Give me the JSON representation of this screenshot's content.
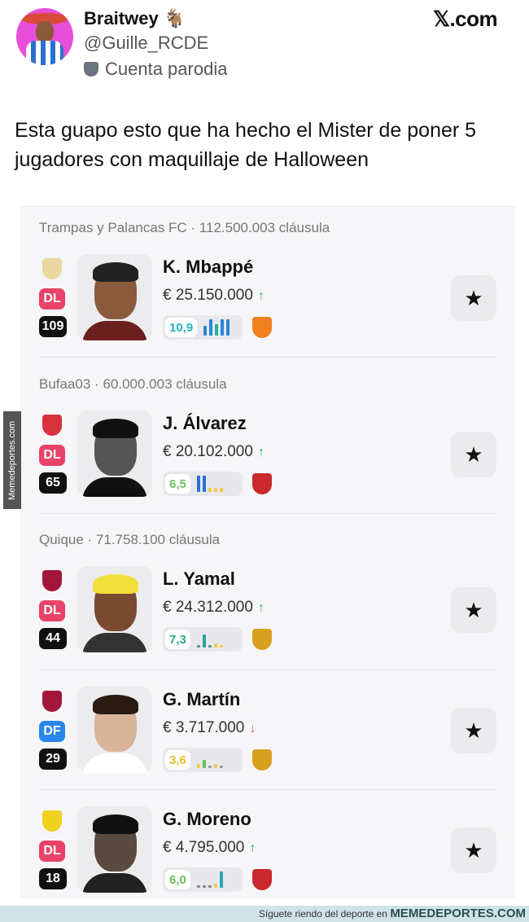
{
  "post": {
    "display_name": "Braitwey 🐐",
    "handle": "@Guille_RCDE",
    "parody_label": "Cuenta parodia",
    "source": "𝕏.com",
    "text": "Esta guapo esto que ha hecho el Mister de poner 5 jugadores con maquillaje de Halloween"
  },
  "players": [
    {
      "section": "Trampas y Palancas FC · 112.500.003 cláusula",
      "club_color": "#e9d9a0",
      "position": "DL",
      "position_color": "#e8436a",
      "points": "109",
      "name": "K. Mbappé",
      "price": "€ 25.150.000",
      "trend": "↑",
      "trend_color": "#2aa87a",
      "rating": "10,9",
      "rating_color": "#2bb3c0",
      "bars": [
        {
          "level": 0.6,
          "color": "#2a86d8"
        },
        {
          "level": 1,
          "color": "#2a86d8"
        },
        {
          "level": 0.7,
          "color": "#2ab0a0"
        },
        {
          "level": 1,
          "color": "#2a86d8"
        },
        {
          "level": 1,
          "color": "#2a86d8"
        }
      ],
      "opponent_color": "#f08020",
      "face": "#8b5a3c",
      "hair": "#222",
      "shirt": "#6b1f1f"
    },
    {
      "section": "Bufaa03 · 60.000.003 cláusula",
      "club_color": "#d8323c",
      "position": "DL",
      "position_color": "#e8436a",
      "points": "65",
      "name": "J. Álvarez",
      "price": "€ 20.102.000",
      "trend": "↑",
      "trend_color": "#2aa87a",
      "rating": "6,5",
      "rating_color": "#6abf5a",
      "bars": [
        {
          "level": 1,
          "color": "#2a6fd8"
        },
        {
          "level": 1,
          "color": "#2a6fd8"
        },
        {
          "level": 0.25,
          "color": "#f2c94c"
        },
        {
          "level": 0.25,
          "color": "#f2c94c"
        },
        {
          "level": 0.25,
          "color": "#f2c94c"
        }
      ],
      "opponent_color": "#c8282e",
      "face": "#555",
      "hair": "#111",
      "shirt": "#111"
    },
    {
      "section": "Quique · 71.758.100 cláusula",
      "club_color": "#a3153a",
      "position": "DL",
      "position_color": "#e8436a",
      "points": "44",
      "name": "L. Yamal",
      "price": "€ 24.312.000",
      "trend": "↑",
      "trend_color": "#2aa87a",
      "rating": "7,3",
      "rating_color": "#2aa88a",
      "bars": [
        {
          "level": 0.15,
          "color": "#4a9a8a"
        },
        {
          "level": 0.8,
          "color": "#2aa0a0"
        },
        {
          "level": 0.15,
          "color": "#4a9a8a"
        },
        {
          "level": 0.25,
          "color": "#f2c94c"
        },
        {
          "level": 0.15,
          "color": "#f2c94c"
        }
      ],
      "opponent_color": "#d8a020",
      "face": "#7a4a30",
      "hair": "#f2e03a",
      "shirt": "#333"
    },
    {
      "section": "",
      "club_color": "#a3153a",
      "position": "DF",
      "position_color": "#2a86e8",
      "points": "29",
      "name": "G. Martín",
      "price": "€ 3.717.000",
      "trend": "↓",
      "trend_color": "#e0508a",
      "rating": "3,6",
      "rating_color": "#e8c030",
      "bars": [
        {
          "level": 0.25,
          "color": "#f2c94c"
        },
        {
          "level": 0.5,
          "color": "#6abf5a"
        },
        {
          "level": 0.15,
          "color": "#999"
        },
        {
          "level": 0.25,
          "color": "#f2c94c"
        },
        {
          "level": 0.15,
          "color": "#999"
        }
      ],
      "opponent_color": "#d8a020",
      "face": "#d8b49a",
      "hair": "#2a1a10",
      "shirt": "#fff"
    },
    {
      "section": "",
      "club_color": "#f0d020",
      "position": "DL",
      "position_color": "#e8436a",
      "points": "18",
      "name": "G. Moreno",
      "price": "€ 4.795.000",
      "trend": "↑",
      "trend_color": "#2aa87a",
      "rating": "6,0",
      "rating_color": "#6abf5a",
      "bars": [
        {
          "level": 0.12,
          "color": "#888"
        },
        {
          "level": 0.12,
          "color": "#888"
        },
        {
          "level": 0.12,
          "color": "#888"
        },
        {
          "level": 0.25,
          "color": "#f2c94c"
        },
        {
          "level": 1,
          "color": "#2aa8b0"
        }
      ],
      "opponent_color": "#c8282e",
      "face": "#5a4a40",
      "hair": "#111",
      "shirt": "#222"
    }
  ],
  "watermark": "Memedeportes.com",
  "footer": {
    "text": "Síguete riendo del deporte en ",
    "brand": "MEMEDEPORTES.COM"
  }
}
